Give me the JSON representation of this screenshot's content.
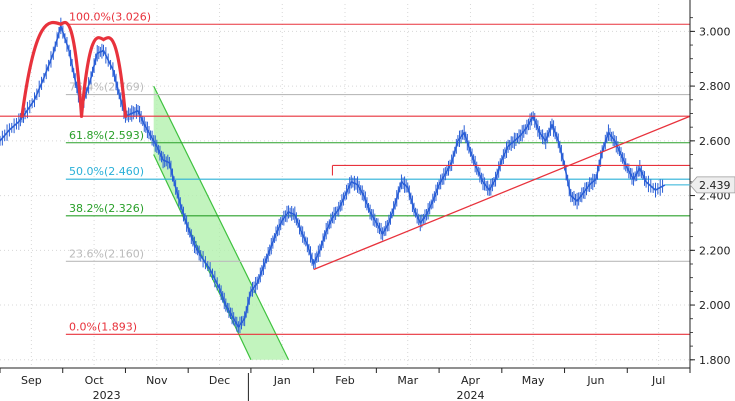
{
  "chart_data": {
    "type": "line",
    "ylim": [
      1.77,
      3.1
    ],
    "yticks": [
      1.8,
      2.0,
      2.2,
      2.4,
      2.6,
      2.8,
      3.0
    ],
    "ytick_labels": [
      "1.800",
      "2.000",
      "2.200",
      "2.400",
      "2.600",
      "2.800",
      "3.000"
    ],
    "xlim_months": [
      0,
      11
    ],
    "xticks": [
      {
        "label": "Sep",
        "m": 0.5
      },
      {
        "label": "Oct",
        "m": 1.5
      },
      {
        "label": "Nov",
        "m": 2.5
      },
      {
        "label": "Dec",
        "m": 3.5
      },
      {
        "label": "Jan",
        "m": 4.5
      },
      {
        "label": "Feb",
        "m": 5.5
      },
      {
        "label": "Mar",
        "m": 6.5
      },
      {
        "label": "Apr",
        "m": 7.5
      },
      {
        "label": "May",
        "m": 8.5
      },
      {
        "label": "Jun",
        "m": 9.5
      },
      {
        "label": "Jul",
        "m": 10.5
      }
    ],
    "year_labels": [
      {
        "label": "2023",
        "m": 1.7
      },
      {
        "label": "2024",
        "m": 7.5
      }
    ],
    "year_divider_m": 3.96,
    "last_value": 2.439,
    "last_value_label": "2.439",
    "fib_levels": [
      {
        "label": "100.0%(3.026)",
        "value": 3.026,
        "color": "#e8323c"
      },
      {
        "label": "76.4%(2.769)",
        "value": 2.769,
        "color": "#bbbbbb"
      },
      {
        "label": "61.8%(2.593)",
        "value": 2.593,
        "color": "#2aa02a"
      },
      {
        "label": "50.0%(2.460)",
        "value": 2.46,
        "color": "#2ab0d8"
      },
      {
        "label": "38.2%(2.326)",
        "value": 2.326,
        "color": "#2aa02a"
      },
      {
        "label": "23.6%(2.160)",
        "value": 2.16,
        "color": "#bbbbbb"
      },
      {
        "label": "0.0%(1.893)",
        "value": 1.893,
        "color": "#e8323c"
      }
    ],
    "horizontal_lines": [
      {
        "from_m": 0.0,
        "to_m": 11.0,
        "y": 2.69,
        "color": "#e8323c"
      },
      {
        "from_m": 5.3,
        "to_m": 11.0,
        "y": 2.51,
        "color": "#e8323c"
      }
    ],
    "trendline": {
      "m1": 5.0,
      "y1": 2.13,
      "m2": 11.0,
      "y2": 2.69,
      "color": "#e8323c"
    },
    "channel": {
      "top": {
        "m1": 2.45,
        "y1": 2.8,
        "m2": 4.6,
        "y2": 1.8
      },
      "bottom": {
        "m1": 2.45,
        "y1": 2.55,
        "m2": 4.0,
        "y2": 1.8
      },
      "fill": "#aef0a8",
      "stroke": "#3ec13e"
    },
    "double_top_arcs": [
      {
        "m1": 0.35,
        "y1": 2.69,
        "mpeak": 0.97,
        "ypeak": 3.026,
        "m2": 1.3,
        "y2": 2.69
      },
      {
        "m1": 1.3,
        "y1": 2.69,
        "mpeak": 1.65,
        "ypeak": 2.97,
        "m2": 2.0,
        "y2": 2.69
      }
    ],
    "arc_color": "#e8323c",
    "series": [
      {
        "color": "#2a5fd6",
        "values": [
          [
            0.0,
            2.6
          ],
          [
            0.15,
            2.64
          ],
          [
            0.3,
            2.67
          ],
          [
            0.4,
            2.7
          ],
          [
            0.55,
            2.75
          ],
          [
            0.7,
            2.83
          ],
          [
            0.85,
            2.92
          ],
          [
            0.97,
            3.02
          ],
          [
            1.1,
            2.93
          ],
          [
            1.2,
            2.82
          ],
          [
            1.3,
            2.72
          ],
          [
            1.45,
            2.83
          ],
          [
            1.55,
            2.92
          ],
          [
            1.65,
            2.93
          ],
          [
            1.8,
            2.86
          ],
          [
            1.9,
            2.77
          ],
          [
            2.0,
            2.69
          ],
          [
            2.1,
            2.7
          ],
          [
            2.2,
            2.71
          ],
          [
            2.3,
            2.66
          ],
          [
            2.4,
            2.62
          ],
          [
            2.5,
            2.58
          ],
          [
            2.6,
            2.53
          ],
          [
            2.7,
            2.52
          ],
          [
            2.8,
            2.43
          ],
          [
            2.9,
            2.35
          ],
          [
            3.0,
            2.28
          ],
          [
            3.1,
            2.22
          ],
          [
            3.2,
            2.18
          ],
          [
            3.35,
            2.13
          ],
          [
            3.5,
            2.06
          ],
          [
            3.6,
            2.0
          ],
          [
            3.7,
            1.96
          ],
          [
            3.8,
            1.92
          ],
          [
            3.9,
            1.95
          ],
          [
            4.0,
            2.05
          ],
          [
            4.1,
            2.08
          ],
          [
            4.2,
            2.14
          ],
          [
            4.3,
            2.2
          ],
          [
            4.4,
            2.26
          ],
          [
            4.5,
            2.31
          ],
          [
            4.6,
            2.34
          ],
          [
            4.7,
            2.33
          ],
          [
            4.8,
            2.27
          ],
          [
            4.9,
            2.22
          ],
          [
            5.0,
            2.15
          ],
          [
            5.1,
            2.2
          ],
          [
            5.2,
            2.27
          ],
          [
            5.3,
            2.32
          ],
          [
            5.4,
            2.35
          ],
          [
            5.5,
            2.4
          ],
          [
            5.6,
            2.45
          ],
          [
            5.7,
            2.44
          ],
          [
            5.8,
            2.4
          ],
          [
            5.9,
            2.34
          ],
          [
            6.0,
            2.3
          ],
          [
            6.1,
            2.26
          ],
          [
            6.2,
            2.3
          ],
          [
            6.3,
            2.37
          ],
          [
            6.4,
            2.45
          ],
          [
            6.5,
            2.43
          ],
          [
            6.6,
            2.35
          ],
          [
            6.7,
            2.3
          ],
          [
            6.8,
            2.33
          ],
          [
            6.9,
            2.38
          ],
          [
            7.0,
            2.44
          ],
          [
            7.1,
            2.48
          ],
          [
            7.2,
            2.52
          ],
          [
            7.3,
            2.6
          ],
          [
            7.4,
            2.63
          ],
          [
            7.5,
            2.56
          ],
          [
            7.6,
            2.5
          ],
          [
            7.7,
            2.45
          ],
          [
            7.8,
            2.42
          ],
          [
            7.9,
            2.46
          ],
          [
            8.0,
            2.53
          ],
          [
            8.1,
            2.58
          ],
          [
            8.2,
            2.6
          ],
          [
            8.3,
            2.62
          ],
          [
            8.4,
            2.65
          ],
          [
            8.5,
            2.69
          ],
          [
            8.6,
            2.63
          ],
          [
            8.7,
            2.6
          ],
          [
            8.8,
            2.66
          ],
          [
            8.9,
            2.6
          ],
          [
            9.0,
            2.51
          ],
          [
            9.1,
            2.4
          ],
          [
            9.2,
            2.38
          ],
          [
            9.3,
            2.41
          ],
          [
            9.4,
            2.44
          ],
          [
            9.5,
            2.46
          ],
          [
            9.6,
            2.56
          ],
          [
            9.7,
            2.63
          ],
          [
            9.8,
            2.6
          ],
          [
            9.9,
            2.55
          ],
          [
            10.0,
            2.5
          ],
          [
            10.1,
            2.46
          ],
          [
            10.2,
            2.5
          ],
          [
            10.3,
            2.45
          ],
          [
            10.45,
            2.42
          ],
          [
            10.6,
            2.439
          ]
        ]
      }
    ]
  }
}
